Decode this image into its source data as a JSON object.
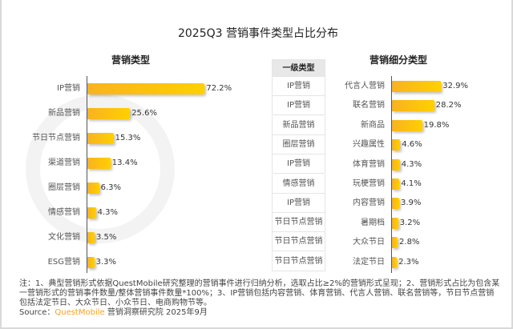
{
  "title": "2025Q3 营销事件类型占比分布",
  "watermark": "QUESTMOBILE",
  "colors": {
    "bar_start": "#f9b21f",
    "bar_end": "#ffd000",
    "source_brand": "#f7a21b"
  },
  "chart_data": [
    {
      "type": "bar",
      "orientation": "horizontal",
      "title": "营销类型",
      "categories": [
        "IP营销",
        "新品营销",
        "节日节点营销",
        "渠道营销",
        "圈层营销",
        "情感营销",
        "文化营销",
        "ESG营销"
      ],
      "values": [
        72.2,
        25.6,
        15.3,
        13.4,
        6.3,
        4.3,
        3.5,
        3.3
      ],
      "value_labels": [
        "72.2%",
        "25.6%",
        "15.3%",
        "13.4%",
        "6.3%",
        "4.3%",
        "3.5%",
        "3.3%"
      ]
    },
    {
      "type": "table",
      "header": "一级类型",
      "rows": [
        "IP营销",
        "IP营销",
        "新品营销",
        "圈层营销",
        "IP营销",
        "情感营销",
        "IP营销",
        "节日节点营销",
        "节日节点营销",
        "节日节点营销"
      ]
    },
    {
      "type": "bar",
      "orientation": "horizontal",
      "title": "营销细分类型",
      "categories": [
        "代言人营销",
        "联名营销",
        "新商品",
        "兴趣属性",
        "体育营销",
        "玩梗营销",
        "内容营销",
        "暑期档",
        "大众节日",
        "法定节日"
      ],
      "values": [
        32.9,
        28.2,
        19.8,
        4.6,
        4.3,
        4.1,
        3.9,
        3.2,
        2.8,
        2.3
      ],
      "value_labels": [
        "32.9%",
        "28.2%",
        "19.8%",
        "4.6%",
        "4.3%",
        "4.1%",
        "3.9%",
        "3.2%",
        "2.8%",
        "2.3%"
      ]
    }
  ],
  "note": "注：1、典型营销形式依据QuestMobile研究整理的营销事件进行归纳分析，选取占比≥2%的营销形式呈现；2、营销形式占比为包含某一营销形式的营销事件数量/整体营销事件数量*100%；3、IP营销包括内容营销、体育营销、代言人营销、联名营销等，节日节点营销包括法定节日、大众节日、小众节日、电商购物节等。",
  "source": {
    "label": "Source：",
    "brand": "QuestMobile",
    "text": " 营销洞察研究院 2025年9月"
  }
}
